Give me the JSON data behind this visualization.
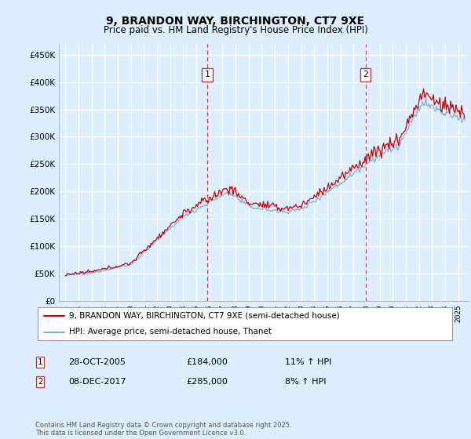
{
  "title": "9, BRANDON WAY, BIRCHINGTON, CT7 9XE",
  "subtitle": "Price paid vs. HM Land Registry's House Price Index (HPI)",
  "ylabel_ticks": [
    "£0",
    "£50K",
    "£100K",
    "£150K",
    "£200K",
    "£250K",
    "£300K",
    "£350K",
    "£400K",
    "£450K"
  ],
  "ytick_values": [
    0,
    50000,
    100000,
    150000,
    200000,
    250000,
    300000,
    350000,
    400000,
    450000
  ],
  "ylim": [
    0,
    470000
  ],
  "xlim_start": 1994.5,
  "xlim_end": 2025.8,
  "background_color": "#ddeeff",
  "plot_bg_color": "#ddeeff",
  "grid_color": "#ffffff",
  "line_color_red": "#cc0000",
  "line_color_blue": "#7aade0",
  "marker1_x": 2005.83,
  "marker2_x": 2017.92,
  "marker1_date": "28-OCT-2005",
  "marker1_price": "£184,000",
  "marker1_hpi": "11% ↑ HPI",
  "marker2_date": "08-DEC-2017",
  "marker2_price": "£285,000",
  "marker2_hpi": "8% ↑ HPI",
  "legend_line1": "9, BRANDON WAY, BIRCHINGTON, CT7 9XE (semi-detached house)",
  "legend_line2": "HPI: Average price, semi-detached house, Thanet",
  "footer": "Contains HM Land Registry data © Crown copyright and database right 2025.\nThis data is licensed under the Open Government Licence v3.0."
}
